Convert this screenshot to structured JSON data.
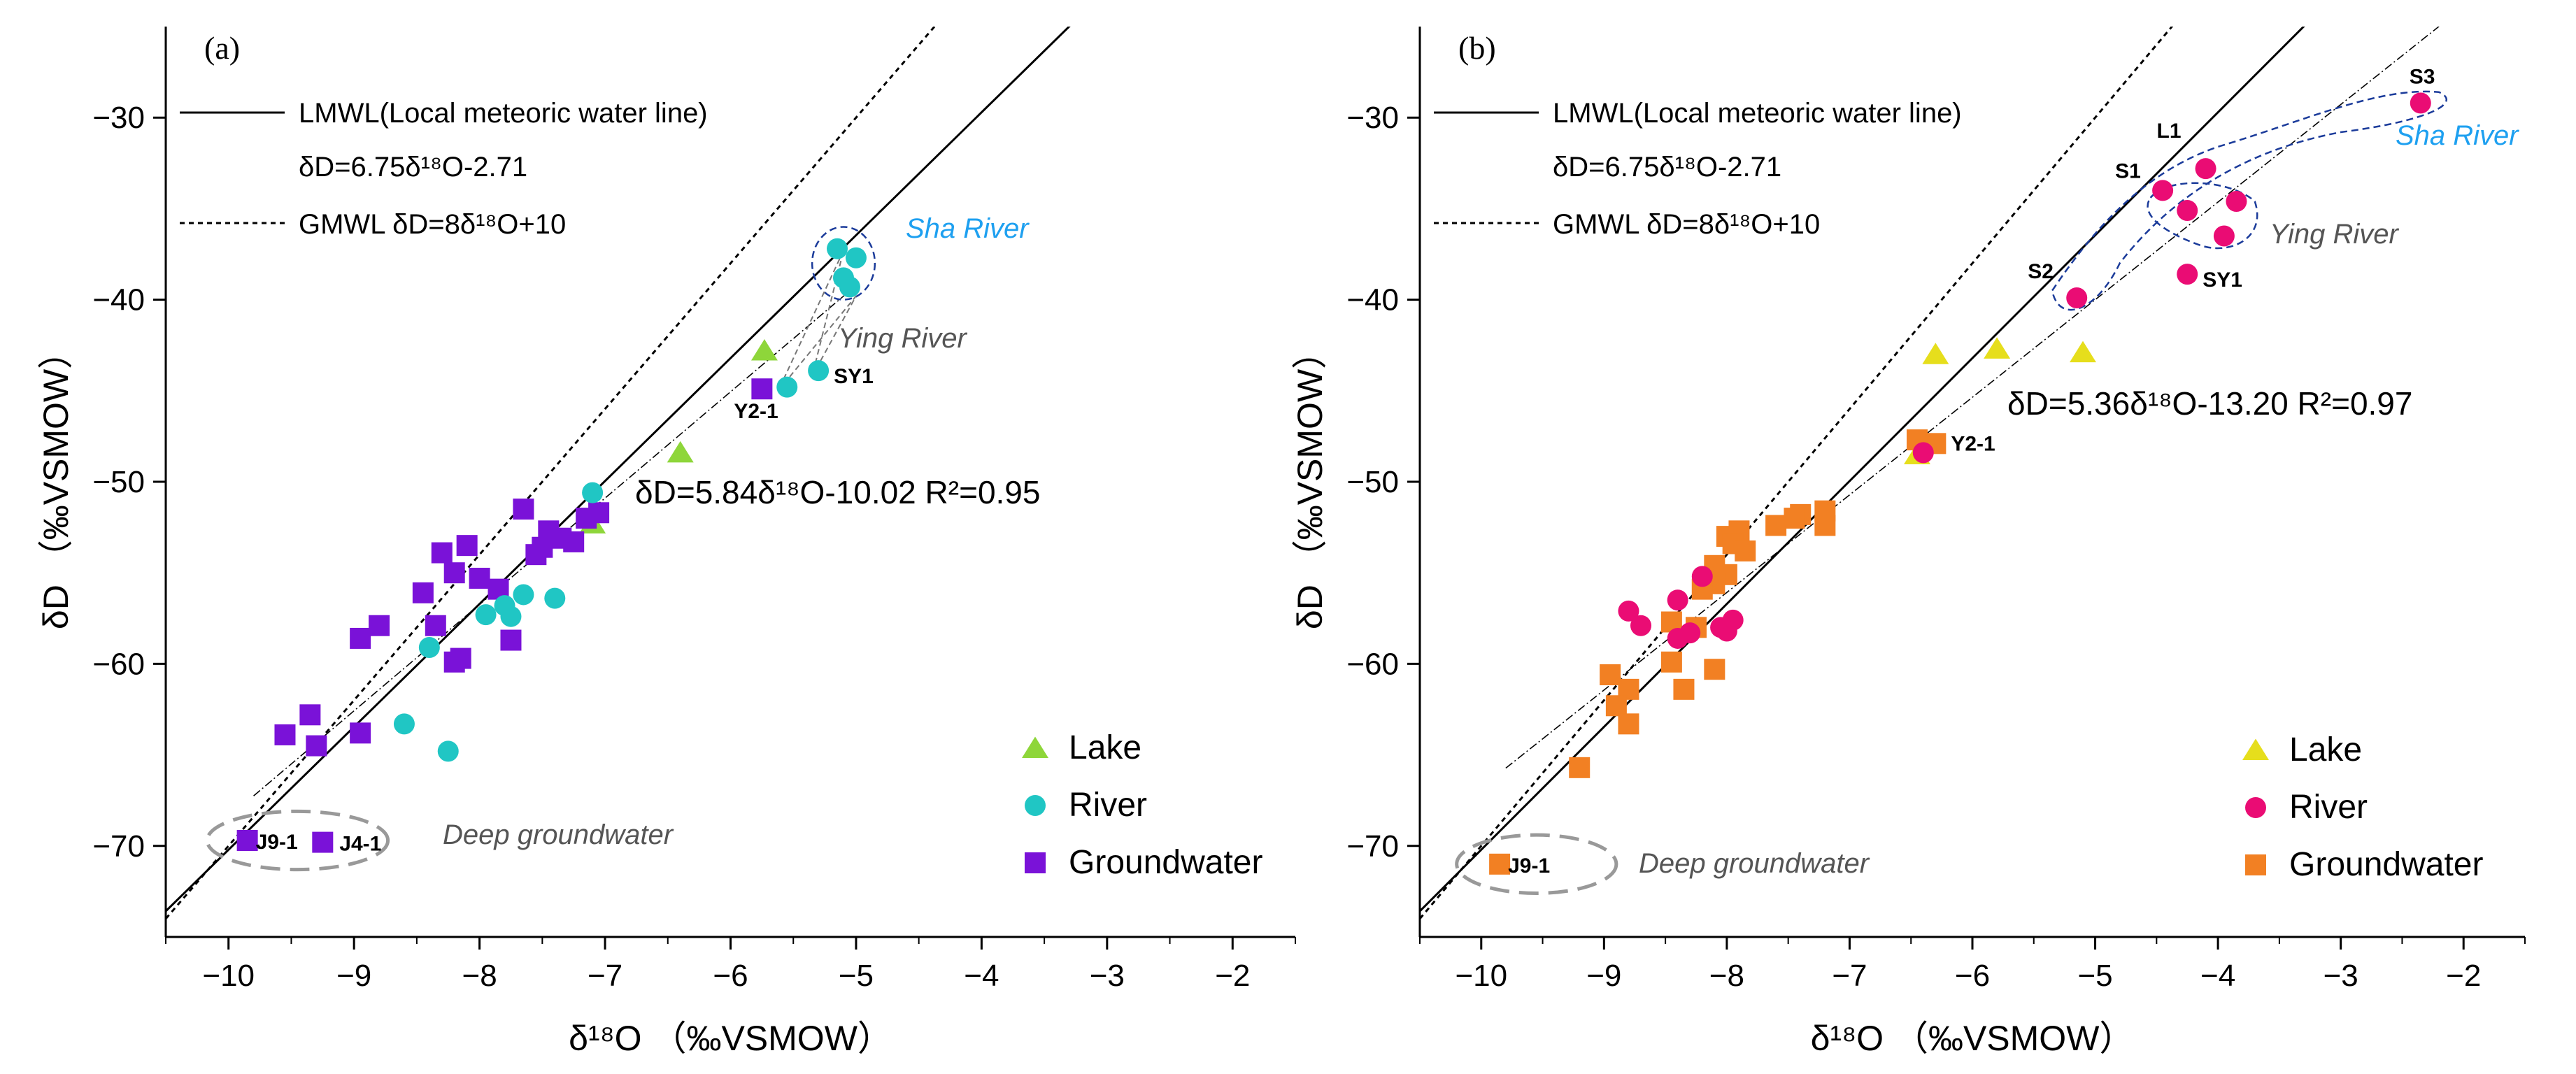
{
  "figure": {
    "xlabel": "δ¹⁸O （‰VSMOW）",
    "ylabel": "δD （‰VSMOW）"
  },
  "colors": {
    "lake_a": "#8ed63a",
    "river_a": "#20c6c4",
    "gw_a": "#7a12d8",
    "lake_b": "#e6de1c",
    "river_b": "#ea0c74",
    "gw_b": "#f28023",
    "sha_label": "#1ea0f0",
    "ying_label": "#555555",
    "deep_label": "#555555"
  },
  "chart_data": [
    {
      "type": "scatter",
      "panel_label": "(a)",
      "xlim": [
        -10.5,
        -1.5
      ],
      "ylim": [
        -75,
        -25
      ],
      "xticks": [
        -10,
        -9,
        -8,
        -7,
        -6,
        -5,
        -4,
        -3,
        -2
      ],
      "yticks": [
        -30,
        -40,
        -50,
        -60,
        -70
      ],
      "xtick_labels": [
        "−10",
        "−9",
        "−8",
        "−7",
        "−6",
        "−5",
        "−4",
        "−3",
        "−2"
      ],
      "ytick_labels": [
        "−30",
        "−40",
        "−50",
        "−60",
        "−70"
      ],
      "legend_text": {
        "lmwl": "LMWL(Local meteoric water line)",
        "lmwl_eq": "δD=6.75δ¹⁸O-2.71",
        "gmwl": "GMWL δD=8δ¹⁸O+10"
      },
      "lines": {
        "lmwl": {
          "slope": 6.75,
          "intercept": -2.71
        },
        "gmwl": {
          "slope": 8,
          "intercept": 10
        },
        "fit": {
          "slope": 5.84,
          "intercept": -10.02,
          "x_range": [
            -9.8,
            -5.0
          ]
        }
      },
      "fit_equation": "δD=5.84δ¹⁸O-10.02 R²=0.95",
      "series": [
        {
          "name": "Lake",
          "marker": "triangle",
          "points": [
            [
              -5.73,
              -42.8
            ],
            [
              -6.4,
              -48.4
            ],
            [
              -7.1,
              -52.3
            ]
          ]
        },
        {
          "name": "River",
          "marker": "circle",
          "points": [
            [
              -5.15,
              -37.2
            ],
            [
              -5.0,
              -37.7
            ],
            [
              -5.1,
              -38.8
            ],
            [
              -5.05,
              -39.3
            ],
            [
              -5.55,
              -44.8
            ],
            [
              -5.3,
              -43.9
            ],
            [
              -7.1,
              -50.6
            ],
            [
              -7.65,
              -56.2
            ],
            [
              -7.8,
              -56.8
            ],
            [
              -7.95,
              -57.3
            ],
            [
              -7.75,
              -57.4
            ],
            [
              -7.4,
              -56.4
            ],
            [
              -8.4,
              -59.1
            ],
            [
              -8.6,
              -63.3
            ],
            [
              -8.25,
              -64.8
            ]
          ]
        },
        {
          "name": "Groundwater",
          "marker": "square",
          "points": [
            [
              -5.75,
              -44.9
            ],
            [
              -7.65,
              -51.5
            ],
            [
              -7.15,
              -52.0
            ],
            [
              -7.05,
              -51.7
            ],
            [
              -7.45,
              -52.7
            ],
            [
              -7.35,
              -53.1
            ],
            [
              -7.5,
              -53.6
            ],
            [
              -7.25,
              -53.3
            ],
            [
              -7.55,
              -54.0
            ],
            [
              -8.3,
              -53.9
            ],
            [
              -8.1,
              -53.5
            ],
            [
              -8.2,
              -55.0
            ],
            [
              -8.0,
              -55.3
            ],
            [
              -7.85,
              -55.9
            ],
            [
              -8.45,
              -56.1
            ],
            [
              -8.35,
              -57.9
            ],
            [
              -8.8,
              -57.9
            ],
            [
              -8.95,
              -58.6
            ],
            [
              -7.75,
              -58.7
            ],
            [
              -8.2,
              -59.9
            ],
            [
              -8.15,
              -59.7
            ],
            [
              -9.55,
              -63.9
            ],
            [
              -9.35,
              -62.8
            ],
            [
              -9.3,
              -64.5
            ],
            [
              -8.95,
              -63.8
            ],
            [
              -9.85,
              -69.7
            ],
            [
              -9.25,
              -69.8
            ]
          ]
        }
      ],
      "point_labels": [
        {
          "text": "SY1",
          "x": -5.3,
          "y": -43.9
        },
        {
          "text": "Y2-1",
          "x": -5.75,
          "y": -44.9
        },
        {
          "text": "J9-1",
          "x": -9.85,
          "y": -69.7
        },
        {
          "text": "J4-1",
          "x": -9.25,
          "y": -69.8
        }
      ],
      "region_labels": {
        "sha": "Sha River",
        "ying": "Ying River",
        "deep": "Deep groundwater"
      },
      "legend": [
        "Lake",
        "River",
        "Groundwater"
      ]
    },
    {
      "type": "scatter",
      "panel_label": "(b)",
      "xlim": [
        -10.5,
        -1.5
      ],
      "ylim": [
        -75,
        -25
      ],
      "xticks": [
        -10,
        -9,
        -8,
        -7,
        -6,
        -5,
        -4,
        -3,
        -2
      ],
      "yticks": [
        -30,
        -40,
        -50,
        -60,
        -70
      ],
      "xtick_labels": [
        "−10",
        "−9",
        "−8",
        "−7",
        "−6",
        "−5",
        "−4",
        "−3",
        "−2"
      ],
      "ytick_labels": [
        "−30",
        "−40",
        "−50",
        "−60",
        "−70"
      ],
      "legend_text": {
        "lmwl": "LMWL(Local meteoric water line)",
        "lmwl_eq": "δD=6.75δ¹⁸O-2.71",
        "gmwl": "GMWL δD=8δ¹⁸O+10"
      },
      "lines": {
        "lmwl": {
          "slope": 6.75,
          "intercept": -2.71
        },
        "gmwl": {
          "slope": 8,
          "intercept": 10
        },
        "fit": {
          "slope": 5.36,
          "intercept": -13.2,
          "x_range": [
            -9.8,
            -2.2
          ]
        }
      },
      "fit_equation": "δD=5.36δ¹⁸O-13.20 R²=0.97",
      "series": [
        {
          "name": "Lake",
          "marker": "triangle",
          "points": [
            [
              -6.3,
              -43.0
            ],
            [
              -5.8,
              -42.7
            ],
            [
              -5.1,
              -42.9
            ],
            [
              -6.45,
              -48.5
            ]
          ]
        },
        {
          "name": "River",
          "marker": "circle",
          "points": [
            [
              -2.35,
              -29.2
            ],
            [
              -4.1,
              -32.8
            ],
            [
              -4.45,
              -34.0
            ],
            [
              -4.25,
              -35.1
            ],
            [
              -3.85,
              -34.6
            ],
            [
              -3.95,
              -36.5
            ],
            [
              -4.25,
              -38.6
            ],
            [
              -5.15,
              -39.9
            ],
            [
              -6.4,
              -48.4
            ],
            [
              -8.8,
              -57.1
            ],
            [
              -8.7,
              -57.9
            ],
            [
              -8.2,
              -55.2
            ],
            [
              -8.4,
              -56.5
            ],
            [
              -8.3,
              -58.3
            ],
            [
              -8.05,
              -58.0
            ],
            [
              -7.95,
              -57.6
            ],
            [
              -8.0,
              -58.2
            ],
            [
              -8.4,
              -58.6
            ]
          ]
        },
        {
          "name": "Groundwater",
          "marker": "square",
          "points": [
            [
              -6.45,
              -47.7
            ],
            [
              -6.3,
              -47.9
            ],
            [
              -7.2,
              -51.6
            ],
            [
              -7.4,
              -51.8
            ],
            [
              -7.2,
              -52.4
            ],
            [
              -7.6,
              -52.4
            ],
            [
              -7.45,
              -52.0
            ],
            [
              -7.9,
              -52.7
            ],
            [
              -8.0,
              -53.0
            ],
            [
              -7.95,
              -53.4
            ],
            [
              -7.85,
              -53.8
            ],
            [
              -8.1,
              -54.6
            ],
            [
              -8.0,
              -55.1
            ],
            [
              -8.1,
              -55.6
            ],
            [
              -8.2,
              -55.9
            ],
            [
              -8.25,
              -58.0
            ],
            [
              -8.45,
              -57.7
            ],
            [
              -8.1,
              -60.3
            ],
            [
              -8.45,
              -59.9
            ],
            [
              -8.35,
              -61.4
            ],
            [
              -8.8,
              -61.4
            ],
            [
              -8.95,
              -60.6
            ],
            [
              -8.9,
              -62.3
            ],
            [
              -8.8,
              -63.3
            ],
            [
              -9.2,
              -65.7
            ],
            [
              -9.85,
              -71.0
            ]
          ]
        }
      ],
      "point_labels": [
        {
          "text": "S3",
          "x": -2.35,
          "y": -29.2
        },
        {
          "text": "L1",
          "x": -4.1,
          "y": -32.8
        },
        {
          "text": "S1",
          "x": -4.45,
          "y": -34.0
        },
        {
          "text": "S2",
          "x": -5.15,
          "y": -39.9
        },
        {
          "text": "SY1",
          "x": -4.25,
          "y": -38.6
        },
        {
          "text": "Y2-1",
          "x": -6.3,
          "y": -47.9
        },
        {
          "text": "J9-1",
          "x": -9.85,
          "y": -71.0
        }
      ],
      "region_labels": {
        "sha": "Sha River",
        "ying": "Ying River",
        "deep": "Deep groundwater"
      },
      "legend": [
        "Lake",
        "River",
        "Groundwater"
      ]
    }
  ]
}
